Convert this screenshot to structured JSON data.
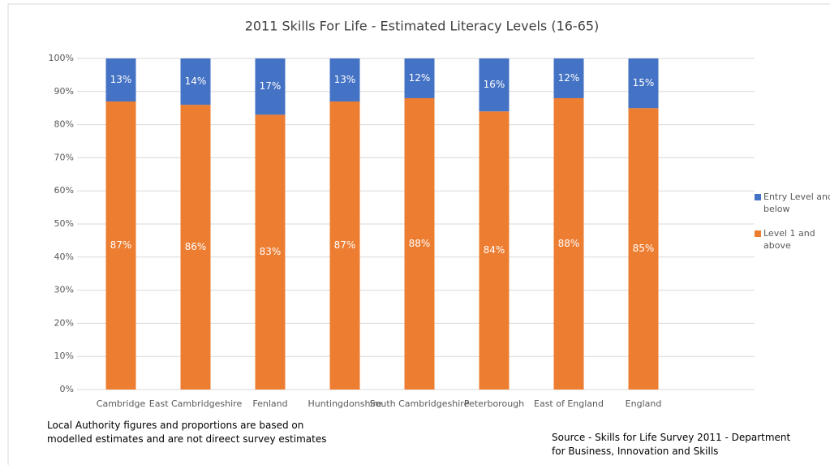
{
  "chart_data": {
    "type": "stacked_bar",
    "title": "2011 Skills For Life - Estimated Literacy Levels (16-65)",
    "categories": [
      "Cambridge",
      "East Cambridgeshire",
      "Fenland",
      "Huntingdonshire",
      "South Cambridgeshire",
      "Peterborough",
      "East of England",
      "England"
    ],
    "series": [
      {
        "name": "Level 1 and above",
        "color": "#ed7d31",
        "values": [
          87,
          86,
          83,
          87,
          88,
          84,
          88,
          85
        ],
        "value_labels": [
          "87%",
          "86%",
          "83%",
          "87%",
          "88%",
          "84%",
          "88%",
          "85%"
        ]
      },
      {
        "name": "Entry Level and below",
        "color": "#4472c4",
        "values": [
          13,
          14,
          17,
          13,
          12,
          16,
          12,
          15
        ],
        "value_labels": [
          "13%",
          "14%",
          "17%",
          "13%",
          "12%",
          "16%",
          "12%",
          "15%"
        ]
      }
    ],
    "ylim": [
      0,
      100
    ],
    "yticks": [
      {
        "value": 0,
        "label": "0%"
      },
      {
        "value": 10,
        "label": "10%"
      },
      {
        "value": 20,
        "label": "20%"
      },
      {
        "value": 30,
        "label": "30%"
      },
      {
        "value": 40,
        "label": "40%"
      },
      {
        "value": 50,
        "label": "50%"
      },
      {
        "value": 60,
        "label": "60%"
      },
      {
        "value": 70,
        "label": "70%"
      },
      {
        "value": 80,
        "label": "80%"
      },
      {
        "value": 90,
        "label": "90%"
      },
      {
        "value": 100,
        "label": "100%"
      }
    ],
    "grid": true,
    "legend": "right",
    "annotations": [
      "Local Authority figures and proportions are based on modelled estimates and are not dirеect survey estimates",
      "Source - Skills for Life Survey 2011 - Department for Business, Innovation and Skills"
    ]
  }
}
